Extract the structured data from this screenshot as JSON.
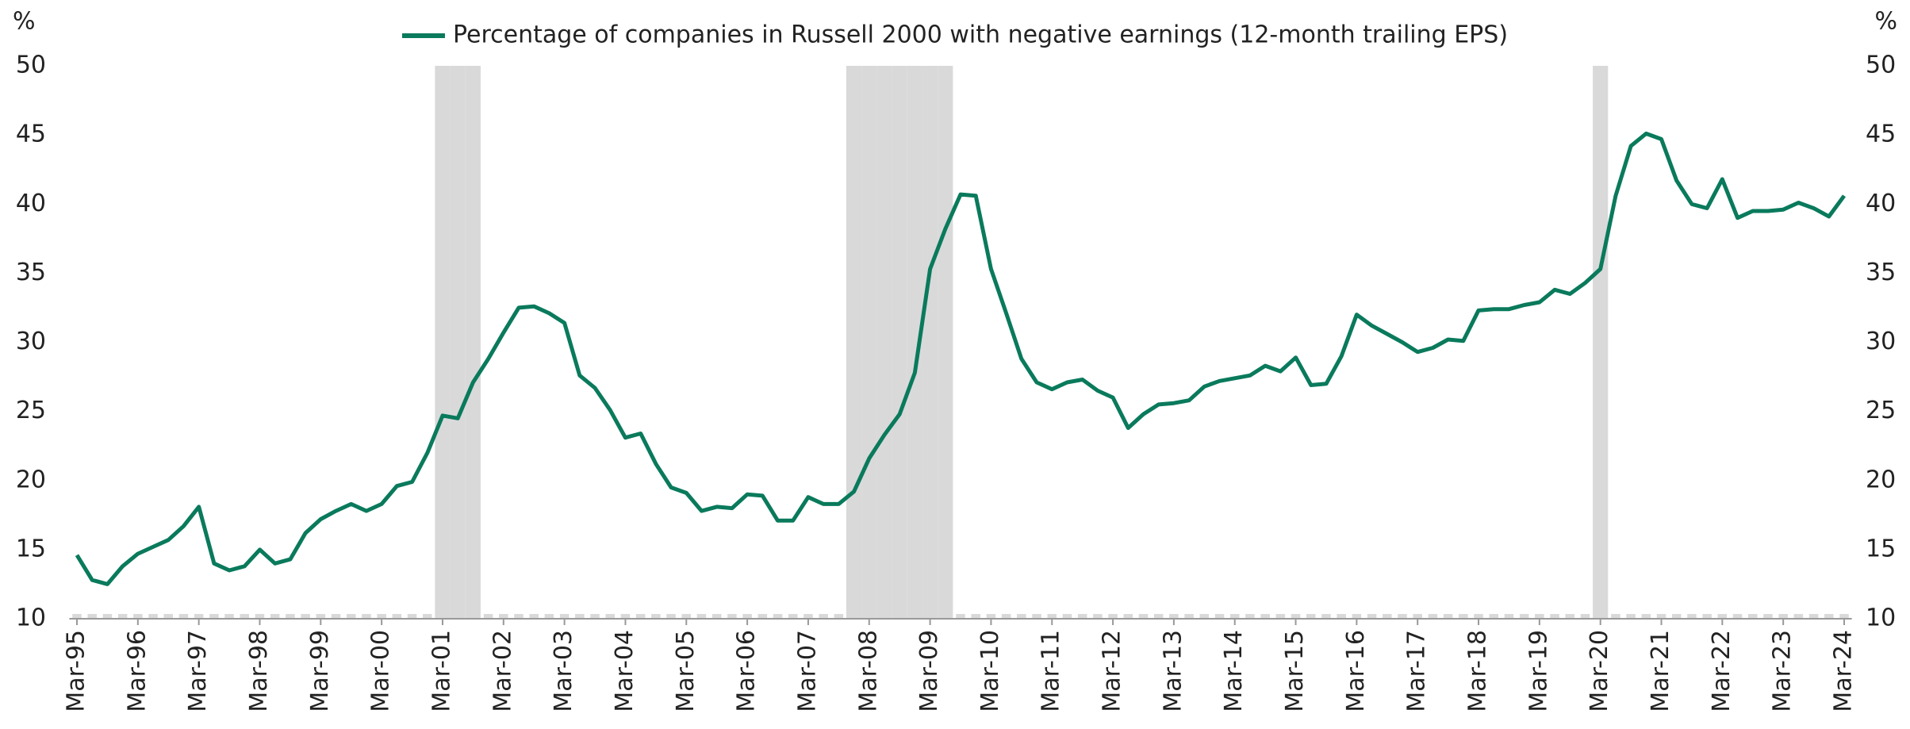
{
  "chart_data": {
    "type": "line",
    "legend": "top",
    "y_label": "%",
    "y2_label": "%",
    "ylim": [
      10,
      50
    ],
    "yticks": [
      10,
      15,
      20,
      25,
      30,
      35,
      40,
      45,
      50
    ],
    "y2lim": [
      10,
      50
    ],
    "y2ticks": [
      10,
      15,
      20,
      25,
      30,
      35,
      40,
      45,
      50
    ],
    "categories": [
      "Mar-95",
      null,
      null,
      null,
      "Mar-96",
      null,
      null,
      null,
      "Mar-97",
      null,
      null,
      null,
      "Mar-98",
      null,
      null,
      null,
      "Mar-99",
      null,
      null,
      null,
      "Mar-00",
      null,
      null,
      null,
      "Mar-01",
      null,
      null,
      null,
      "Mar-02",
      null,
      null,
      null,
      "Mar-03",
      null,
      null,
      null,
      "Mar-04",
      null,
      null,
      null,
      "Mar-05",
      null,
      null,
      null,
      "Mar-06",
      null,
      null,
      null,
      "Mar-07",
      null,
      null,
      null,
      "Mar-08",
      null,
      null,
      null,
      "Mar-09",
      null,
      null,
      null,
      "Mar-10",
      null,
      null,
      null,
      "Mar-11",
      null,
      null,
      null,
      "Mar-12",
      null,
      null,
      null,
      "Mar-13",
      null,
      null,
      null,
      "Mar-14",
      null,
      null,
      null,
      "Mar-15",
      null,
      null,
      null,
      "Mar-16",
      null,
      null,
      null,
      "Mar-17",
      null,
      null,
      null,
      "Mar-18",
      null,
      null,
      null,
      "Mar-19",
      null,
      null,
      null,
      "Mar-20",
      null,
      null,
      null,
      "Mar-21",
      null,
      null,
      null,
      "Mar-22",
      null,
      null,
      null,
      "Mar-23",
      null,
      null,
      null,
      "Mar-24"
    ],
    "series": [
      {
        "type": "bar",
        "color": "#d9d9d9",
        "values": [
          10,
          10,
          10,
          10,
          10,
          10,
          10,
          10,
          10,
          10,
          10,
          10,
          10,
          10,
          10,
          10,
          10,
          10,
          10,
          10,
          10,
          10,
          10,
          10,
          50,
          50,
          50,
          10,
          10,
          10,
          10,
          10,
          10,
          10,
          10,
          10,
          10,
          10,
          10,
          10,
          10,
          10,
          10,
          10,
          10,
          10,
          10,
          10,
          10,
          10,
          10,
          50,
          50,
          50,
          50,
          50,
          50,
          50,
          10,
          10,
          10,
          10,
          10,
          10,
          10,
          10,
          10,
          10,
          10,
          10,
          10,
          10,
          10,
          10,
          10,
          10,
          10,
          10,
          10,
          10,
          10,
          10,
          10,
          10,
          10,
          10,
          10,
          10,
          10,
          10,
          10,
          10,
          10,
          10,
          10,
          10,
          10,
          10,
          10,
          10,
          50,
          10,
          10,
          10,
          10,
          10,
          10,
          10,
          10,
          10,
          10,
          10,
          10,
          10,
          10,
          10,
          10
        ]
      },
      {
        "type": "line",
        "name": "Percentage of companies in Russell 2000 with negative earnings (12-month trailing EPS)",
        "color": "#0a7a5c",
        "values": [
          14.6,
          12.8,
          12.5,
          13.8,
          14.7,
          15.2,
          15.7,
          16.7,
          18.1,
          14.0,
          13.5,
          13.8,
          15.0,
          14.0,
          14.3,
          16.2,
          17.2,
          17.8,
          18.3,
          17.8,
          18.3,
          19.6,
          19.9,
          22.0,
          24.7,
          24.5,
          27.1,
          28.8,
          30.7,
          32.5,
          32.6,
          32.1,
          31.4,
          27.6,
          26.7,
          25.1,
          23.1,
          23.4,
          21.2,
          19.5,
          19.1,
          17.8,
          18.1,
          18.0,
          19.0,
          18.9,
          17.1,
          17.1,
          18.8,
          18.3,
          18.3,
          19.2,
          21.6,
          23.3,
          24.8,
          27.8,
          35.3,
          38.2,
          40.7,
          40.6,
          35.3,
          32.1,
          28.8,
          27.1,
          26.6,
          27.1,
          27.3,
          26.5,
          26.0,
          23.8,
          24.8,
          25.5,
          25.6,
          25.8,
          26.8,
          27.2,
          27.4,
          27.6,
          28.3,
          27.9,
          28.9,
          26.9,
          27.0,
          29.0,
          32.0,
          31.2,
          30.6,
          30.0,
          29.3,
          29.6,
          30.2,
          30.1,
          32.3,
          32.4,
          32.4,
          32.7,
          32.9,
          33.8,
          33.5,
          34.3,
          35.3,
          40.6,
          44.2,
          45.1,
          44.7,
          41.7,
          40.0,
          39.7,
          41.8,
          39.0,
          39.5,
          39.5,
          39.6,
          40.1,
          39.7,
          39.1,
          40.6
        ]
      }
    ]
  }
}
